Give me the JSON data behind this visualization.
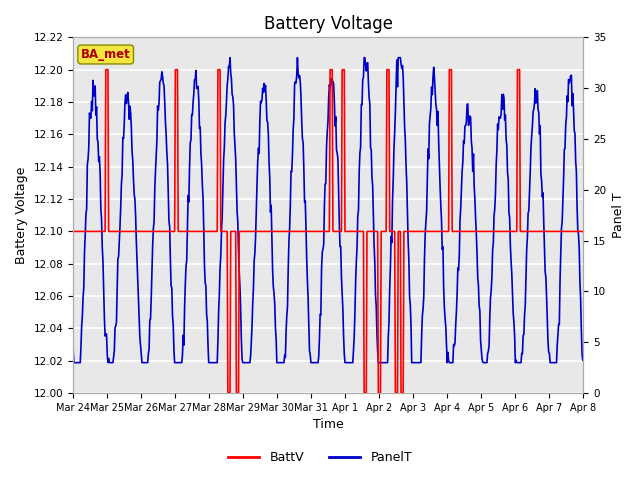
{
  "title": "Battery Voltage",
  "xlabel": "Time",
  "ylabel_left": "Battery Voltage",
  "ylabel_right": "Panel T",
  "annotation_text": "BA_met",
  "annotation_box_color": "#f5e642",
  "annotation_text_color": "#aa0000",
  "left_ylim": [
    12.0,
    12.22
  ],
  "right_ylim": [
    0,
    35
  ],
  "left_yticks": [
    12.0,
    12.02,
    12.04,
    12.06,
    12.08,
    12.1,
    12.12,
    12.14,
    12.16,
    12.18,
    12.2,
    12.22
  ],
  "right_yticks": [
    0,
    5,
    10,
    15,
    20,
    25,
    30,
    35
  ],
  "x_tick_labels": [
    "Mar 24",
    "Mar 25",
    "Mar 26",
    "Mar 27",
    "Mar 28",
    "Mar 29",
    "Mar 30",
    "Mar 31",
    "Apr 1",
    "Apr 2",
    "Apr 3",
    "Apr 4",
    "Apr 5",
    "Apr 6",
    "Apr 7",
    "Apr 8"
  ],
  "background_color": "#e8e8e8",
  "grid_color": "#ffffff",
  "batt_color": "#ff0000",
  "panel_color": "#0000cc",
  "legend_batt": "BattV",
  "legend_panel": "PanelT",
  "figsize": [
    6.4,
    4.8
  ],
  "dpi": 100
}
